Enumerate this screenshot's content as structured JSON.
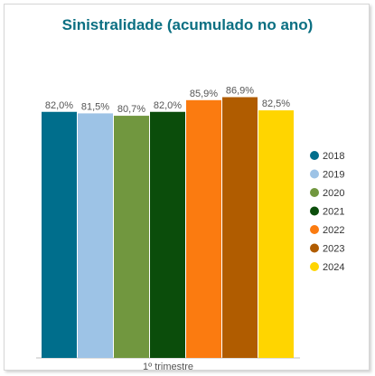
{
  "chart_data": {
    "type": "bar",
    "title": "Sinistralidade (acumulado no ano)",
    "categories": [
      "1º trimestre"
    ],
    "series": [
      {
        "name": "2018",
        "values": [
          82.0
        ],
        "label": "82,0%",
        "color": "#006e8c"
      },
      {
        "name": "2019",
        "values": [
          81.5
        ],
        "label": "81,5%",
        "color": "#9dc3e6"
      },
      {
        "name": "2020",
        "values": [
          80.7
        ],
        "label": "80,7%",
        "color": "#71973f"
      },
      {
        "name": "2021",
        "values": [
          82.0
        ],
        "label": "82,0%",
        "color": "#0b4d0b"
      },
      {
        "name": "2022",
        "values": [
          85.9
        ],
        "label": "85,9%",
        "color": "#fb7b10"
      },
      {
        "name": "2023",
        "values": [
          86.9
        ],
        "label": "86,9%",
        "color": "#b05c00"
      },
      {
        "name": "2024",
        "values": [
          82.5
        ],
        "label": "82,5%",
        "color": "#ffd500"
      }
    ],
    "xlabel": "",
    "ylabel": "",
    "ylim": [
      0,
      100
    ],
    "grid": false,
    "legend_position": "right"
  }
}
